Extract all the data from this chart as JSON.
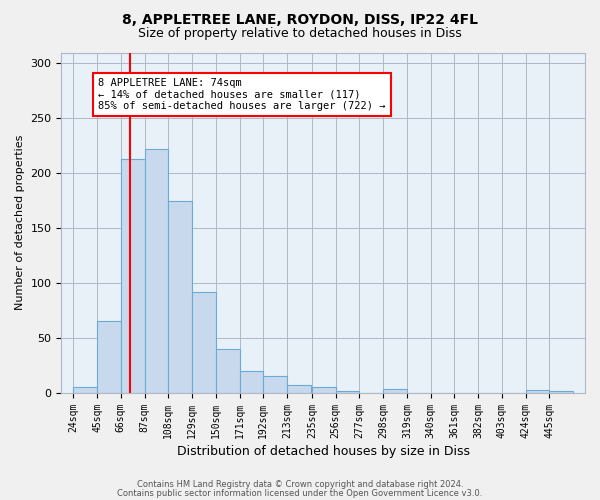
{
  "title1": "8, APPLETREE LANE, ROYDON, DISS, IP22 4FL",
  "title2": "Size of property relative to detached houses in Diss",
  "xlabel": "Distribution of detached houses by size in Diss",
  "ylabel": "Number of detached properties",
  "bin_labels": [
    "24sqm",
    "45sqm",
    "66sqm",
    "87sqm",
    "108sqm",
    "129sqm",
    "150sqm",
    "171sqm",
    "192sqm",
    "213sqm",
    "235sqm",
    "256sqm",
    "277sqm",
    "298sqm",
    "319sqm",
    "340sqm",
    "361sqm",
    "382sqm",
    "403sqm",
    "424sqm",
    "445sqm"
  ],
  "bar_values": [
    5,
    65,
    213,
    222,
    175,
    92,
    40,
    20,
    15,
    7,
    5,
    1,
    0,
    3,
    0,
    0,
    0,
    0,
    0,
    2,
    1
  ],
  "bar_color": "#c8d9ee",
  "bar_edge_color": "#6aaad4",
  "red_line_x": 74,
  "bin_width": 21,
  "bin_starts": [
    24,
    45,
    66,
    87,
    108,
    129,
    150,
    171,
    192,
    213,
    235,
    256,
    277,
    298,
    319,
    340,
    361,
    382,
    403,
    424,
    445
  ],
  "annotation_text": "8 APPLETREE LANE: 74sqm\n← 14% of detached houses are smaller (117)\n85% of semi-detached houses are larger (722) →",
  "ylim": [
    0,
    310
  ],
  "yticks": [
    0,
    50,
    100,
    150,
    200,
    250,
    300
  ],
  "footer1": "Contains HM Land Registry data © Crown copyright and database right 2024.",
  "footer2": "Contains public sector information licensed under the Open Government Licence v3.0.",
  "bg_color": "#f0f0f0",
  "plot_bg_color": "#e8f0f8",
  "grid_color": "#b0b8c8",
  "title_fontsize": 10,
  "subtitle_fontsize": 9,
  "tick_fontsize": 7,
  "ylabel_fontsize": 8,
  "xlabel_fontsize": 9,
  "footer_fontsize": 6,
  "annot_fontsize": 7.5
}
